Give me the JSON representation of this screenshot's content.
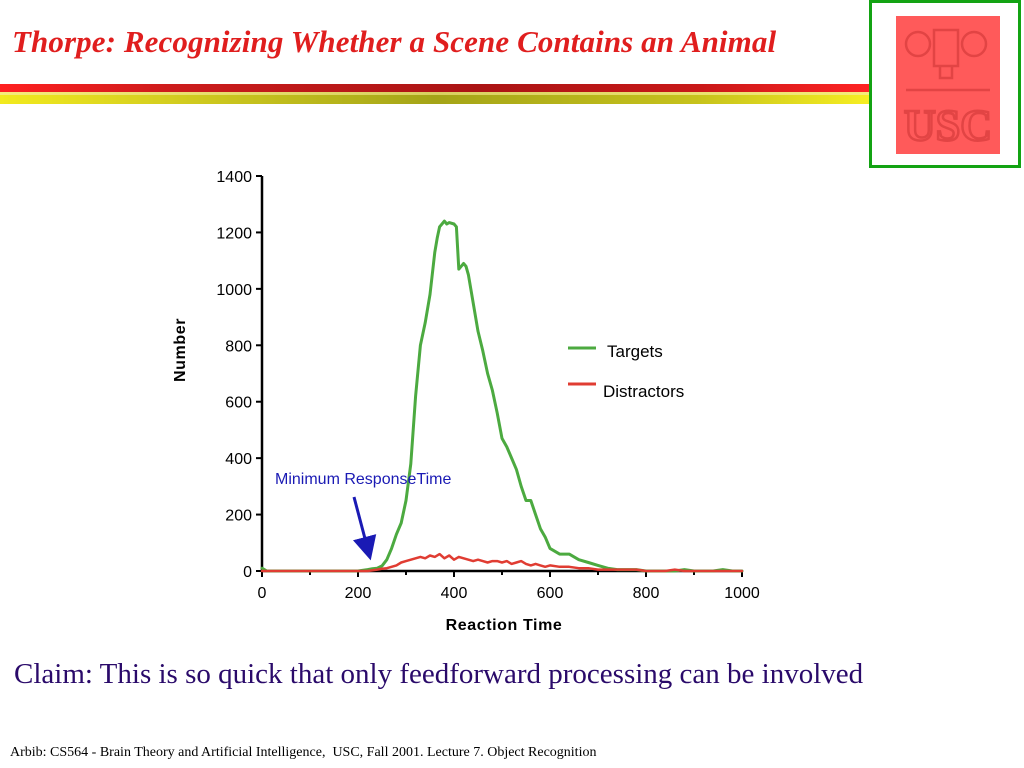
{
  "slide": {
    "title": "Thorpe: Recognizing Whether a Scene Contains an Animal",
    "claim": "Claim: This is so quick that only feedforward processing can be involved",
    "footer": "Arbib: CS564 - Brain Theory and Artificial Intelligence,  USC, Fall 2001. Lecture 7. Object Recognition",
    "logo_text": "USC",
    "colors": {
      "title": "#e01e1e",
      "claim": "#2a0a6a",
      "logo_frame": "#13a313",
      "logo_fill": "#ff5a5a"
    }
  },
  "chart_data": {
    "type": "line",
    "title": "",
    "xlabel": "Reaction Time",
    "ylabel": "Number",
    "xlim": [
      0,
      1000
    ],
    "ylim": [
      0,
      1400
    ],
    "xticks": [
      0,
      200,
      400,
      600,
      800,
      1000
    ],
    "yticks": [
      0,
      200,
      400,
      600,
      800,
      1000,
      1200,
      1400
    ],
    "grid": false,
    "legend_position": "right",
    "series": [
      {
        "name": "Targets",
        "color": "#4caa40",
        "x": [
          0,
          10,
          20,
          40,
          60,
          80,
          100,
          120,
          140,
          160,
          180,
          200,
          220,
          230,
          240,
          250,
          260,
          270,
          280,
          290,
          300,
          310,
          320,
          330,
          340,
          350,
          360,
          365,
          370,
          375,
          380,
          385,
          390,
          400,
          405,
          410,
          415,
          420,
          425,
          430,
          435,
          440,
          445,
          450,
          460,
          470,
          480,
          490,
          500,
          510,
          520,
          530,
          540,
          550,
          560,
          570,
          580,
          590,
          600,
          620,
          640,
          660,
          680,
          700,
          720,
          740,
          760,
          780,
          800,
          820,
          840,
          860,
          880,
          900,
          920,
          940,
          960,
          980,
          1000
        ],
        "y": [
          10,
          0,
          0,
          0,
          0,
          0,
          0,
          0,
          0,
          0,
          0,
          0,
          5,
          8,
          10,
          18,
          40,
          80,
          130,
          170,
          250,
          380,
          620,
          800,
          880,
          980,
          1130,
          1180,
          1220,
          1230,
          1240,
          1230,
          1235,
          1230,
          1220,
          1070,
          1080,
          1090,
          1080,
          1050,
          1000,
          950,
          900,
          850,
          780,
          700,
          640,
          560,
          470,
          440,
          400,
          360,
          300,
          250,
          250,
          200,
          150,
          120,
          80,
          60,
          60,
          40,
          30,
          20,
          10,
          5,
          5,
          5,
          0,
          0,
          0,
          0,
          5,
          0,
          0,
          0,
          5,
          0,
          0
        ]
      },
      {
        "name": "Distractors",
        "color": "#e03c32",
        "x": [
          0,
          20,
          40,
          60,
          80,
          100,
          120,
          140,
          160,
          180,
          200,
          220,
          240,
          250,
          260,
          270,
          280,
          290,
          300,
          310,
          320,
          330,
          340,
          350,
          360,
          370,
          380,
          390,
          400,
          410,
          420,
          430,
          440,
          450,
          460,
          470,
          480,
          490,
          500,
          510,
          520,
          530,
          540,
          550,
          560,
          570,
          580,
          590,
          600,
          620,
          640,
          660,
          680,
          700,
          720,
          740,
          760,
          780,
          800,
          820,
          840,
          860,
          880,
          900,
          920,
          940,
          960,
          980,
          1000
        ],
        "y": [
          0,
          0,
          0,
          0,
          0,
          0,
          0,
          0,
          0,
          0,
          0,
          0,
          5,
          8,
          10,
          15,
          20,
          30,
          35,
          40,
          45,
          50,
          45,
          55,
          50,
          60,
          45,
          55,
          40,
          50,
          45,
          40,
          35,
          40,
          35,
          30,
          35,
          35,
          30,
          35,
          25,
          30,
          35,
          25,
          20,
          25,
          20,
          15,
          20,
          15,
          15,
          10,
          10,
          5,
          5,
          5,
          5,
          5,
          0,
          0,
          0,
          5,
          0,
          0,
          0,
          0,
          0,
          0,
          0
        ]
      }
    ],
    "annotations": [
      {
        "text": "Minimum ResponseTime",
        "arrow_to": [
          240,
          30
        ],
        "color": "#1a1ab4"
      }
    ]
  }
}
